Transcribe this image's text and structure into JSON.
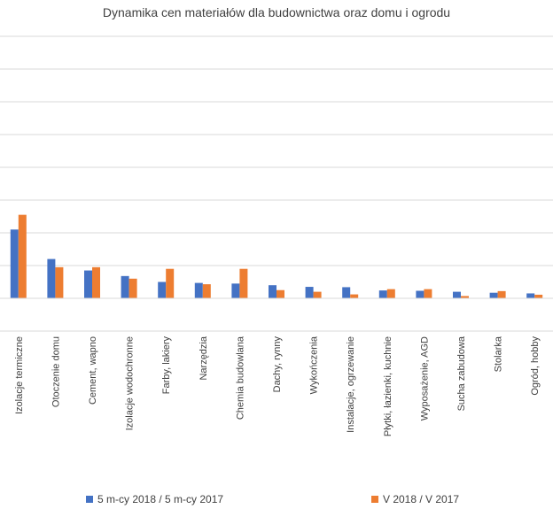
{
  "chart_data": {
    "type": "bar",
    "title": "Dynamika cen materiałów dla budownictwa oraz domu i ogrodu",
    "xlabel": "",
    "ylabel": "",
    "grid": true,
    "legend_position": "bottom",
    "ylim": [
      -1,
      8
    ],
    "categories": [
      "Izolacje termiczne",
      "Otoczenie domu",
      "Cement, wapno",
      "Izolacje wodochronne",
      "Farby, lakiery",
      "Narzędzia",
      "Chemia budowlana",
      "Dachy, rynny",
      "Wykończenia",
      "Instalacje, ogrzewanie",
      "Płytki, łazienki, kuchnie",
      "Wyposażenie, AGD",
      "Sucha zabudowa",
      "Stolarka",
      "Ogród, hobby"
    ],
    "series": [
      {
        "name": "5 m-cy 2018 / 5 m-cy 2017",
        "color": "#4472C4",
        "values": [
          2.1,
          1.2,
          0.85,
          0.68,
          0.5,
          0.47,
          0.45,
          0.4,
          0.35,
          0.34,
          0.24,
          0.23,
          0.2,
          0.17,
          0.15
        ]
      },
      {
        "name": "V 2018 / V 2017",
        "color": "#ED7D31",
        "values": [
          2.55,
          0.95,
          0.95,
          0.6,
          0.9,
          0.43,
          0.9,
          0.25,
          0.2,
          0.12,
          0.28,
          0.28,
          0.07,
          0.22,
          0.11
        ]
      }
    ]
  }
}
